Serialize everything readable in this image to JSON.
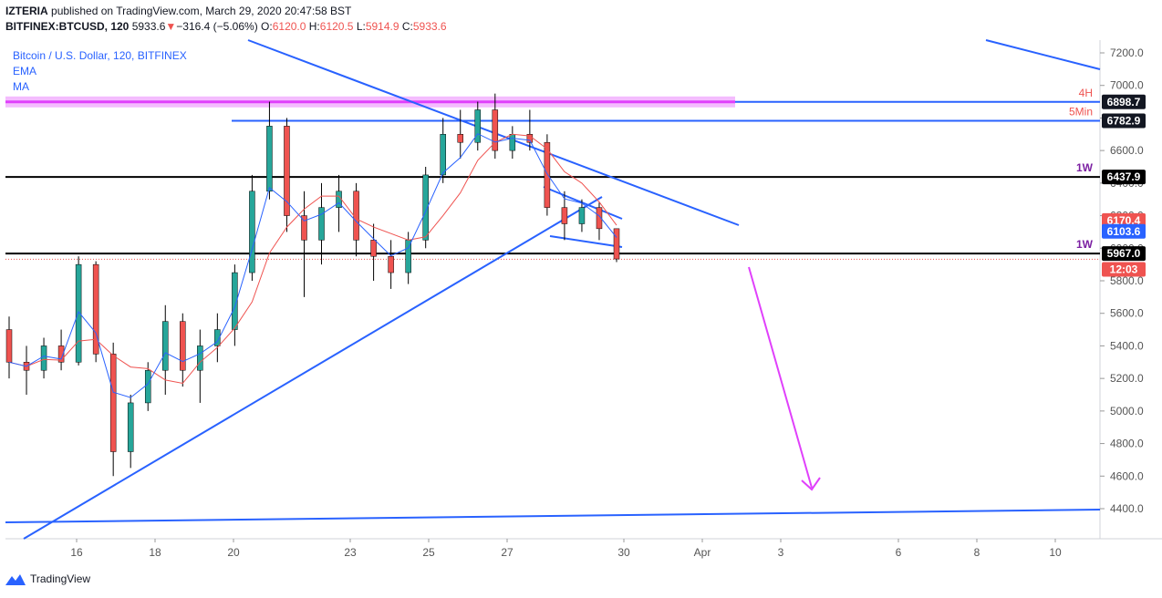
{
  "header": {
    "publisher": "IZTERIA",
    "published_text": "published on TradingView.com, March 29, 2020 20:47:58 BST",
    "symbol": "BITFINEX:BTCUSD, 120",
    "last": "5933.6",
    "arrow": "▼",
    "change": "−316.4 (−5.06%)",
    "open_label": "O:",
    "open": "6120.0",
    "high_label": "H:",
    "high": "6120.5",
    "low_label": "L:",
    "low": "5914.9",
    "close_label": "C:",
    "close": "5933.6"
  },
  "legend": {
    "title": "Bitcoin / U.S. Dollar, 120, BITFINEX",
    "ema": "EMA",
    "ma": "MA"
  },
  "footer": {
    "brand": "TradingView"
  },
  "colors": {
    "up": "#26a69a",
    "down": "#ef5350",
    "trendline": "#2962ff",
    "magenta": "#e040fb",
    "ema": "#2962ff",
    "ma": "#ef5350",
    "level": "#000000",
    "axis_text": "#555555"
  },
  "chart_data": {
    "type": "candlestick",
    "y_axis": {
      "min": 4200,
      "max": 7300,
      "ticks": [
        4400,
        4600,
        4800,
        5000,
        5200,
        5400,
        5600,
        5800,
        6000,
        6200,
        6400,
        6600,
        6800,
        7000,
        7200
      ]
    },
    "x_axis": {
      "ticks": [
        "16",
        "18",
        "20",
        "23",
        "25",
        "27",
        "30",
        "Apr",
        "3",
        "6",
        "8",
        "10"
      ]
    },
    "price_labels": [
      {
        "text": "6898.7",
        "value": 6898.7,
        "color": "#131722"
      },
      {
        "text": "6782.9",
        "value": 6782.9,
        "color": "#131722"
      },
      {
        "text": "6437.9",
        "value": 6437.9,
        "color": "#000000"
      },
      {
        "text": "6170.4",
        "value": 6170.4,
        "color": "#ef5350"
      },
      {
        "text": "6103.6",
        "value": 6103.6,
        "color": "#2962ff"
      },
      {
        "text": "5967.0",
        "value": 5967.0,
        "color": "#000000"
      },
      {
        "text": "12:03",
        "value": 5870,
        "color": "#ef5350"
      }
    ],
    "levels": [
      {
        "value": 6898.7,
        "label": "4H",
        "label_color": "#ef5350"
      },
      {
        "value": 6782.9,
        "label": "5Min",
        "label_color": "#ef5350"
      },
      {
        "value": 6437.9,
        "label": "1W",
        "label_color": "#7b1fa2"
      },
      {
        "value": 5967.0,
        "label": "1W",
        "label_color": "#7b1fa2"
      }
    ],
    "candles_ohlc_sample": [
      [
        5500,
        5580,
        5200,
        5300
      ],
      [
        5300,
        5400,
        5100,
        5250
      ],
      [
        5250,
        5450,
        5200,
        5400
      ],
      [
        5400,
        5500,
        5250,
        5300
      ],
      [
        5300,
        5950,
        5280,
        5900
      ],
      [
        5900,
        5920,
        5300,
        5350
      ],
      [
        5350,
        5420,
        4600,
        4750
      ],
      [
        4750,
        5100,
        4650,
        5050
      ],
      [
        5050,
        5300,
        5000,
        5250
      ],
      [
        5250,
        5650,
        5100,
        5550
      ],
      [
        5550,
        5600,
        5150,
        5250
      ],
      [
        5250,
        5500,
        5050,
        5400
      ],
      [
        5400,
        5600,
        5300,
        5500
      ],
      [
        5500,
        5900,
        5400,
        5850
      ],
      [
        5850,
        6450,
        5800,
        6350
      ],
      [
        6350,
        6900,
        6300,
        6750
      ],
      [
        6750,
        6800,
        6100,
        6200
      ],
      [
        6200,
        6350,
        5700,
        6050
      ],
      [
        6050,
        6400,
        5900,
        6250
      ],
      [
        6250,
        6450,
        6100,
        6350
      ],
      [
        6350,
        6400,
        5950,
        6050
      ],
      [
        6050,
        6150,
        5800,
        5950
      ],
      [
        5950,
        6050,
        5750,
        5850
      ],
      [
        5850,
        6100,
        5780,
        6050
      ],
      [
        6050,
        6500,
        6000,
        6450
      ],
      [
        6450,
        6800,
        6400,
        6700
      ],
      [
        6700,
        6850,
        6550,
        6650
      ],
      [
        6650,
        6900,
        6600,
        6850
      ],
      [
        6850,
        6950,
        6550,
        6600
      ],
      [
        6600,
        6750,
        6550,
        6700
      ],
      [
        6700,
        6850,
        6600,
        6650
      ],
      [
        6650,
        6700,
        6200,
        6250
      ],
      [
        6250,
        6350,
        6050,
        6150
      ],
      [
        6150,
        6300,
        6100,
        6250
      ],
      [
        6250,
        6280,
        6050,
        6120
      ],
      [
        6120,
        6120,
        5915,
        5934
      ]
    ]
  }
}
